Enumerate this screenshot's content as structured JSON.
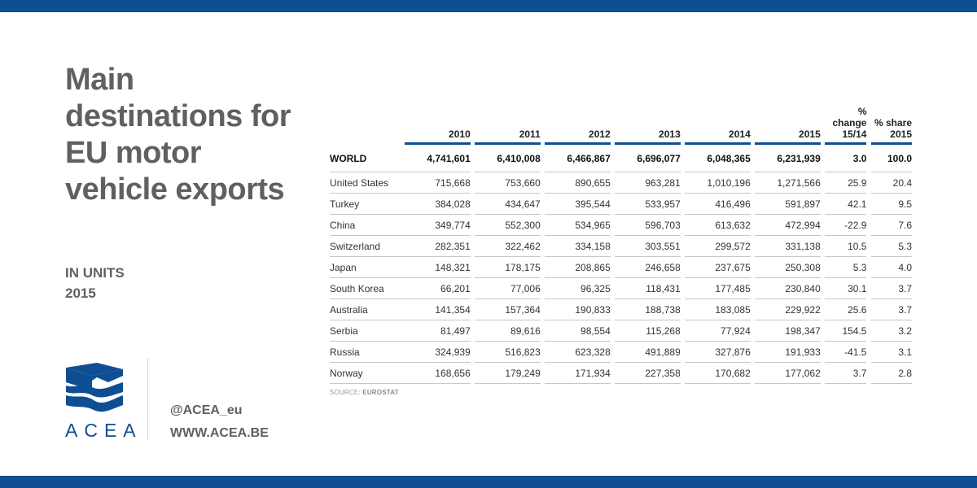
{
  "colors": {
    "brand": "#0f4e93",
    "title_gray": "#606062",
    "rule_gray": "#c7c7c7"
  },
  "title": "Main destinations for EU motor vehicle exports",
  "subtitle": {
    "line1": "IN UNITS",
    "line2": "2015"
  },
  "logo": {
    "icon": "acea-logo-icon",
    "text": "ACEA"
  },
  "social": {
    "handle": "@ACEA_eu",
    "website": "WWW.ACEA.BE"
  },
  "source": {
    "label": "SOURCE:",
    "name": "EUROSTAT"
  },
  "chart_data": {
    "type": "table",
    "columns": [
      "",
      "2010",
      "2011",
      "2012",
      "2013",
      "2014",
      "2015",
      "% change 15/14",
      "% share 2015"
    ],
    "column_lines": [
      [
        ""
      ],
      [
        "2010"
      ],
      [
        "2011"
      ],
      [
        "2012"
      ],
      [
        "2013"
      ],
      [
        "2014"
      ],
      [
        "2015"
      ],
      [
        "% change",
        "15/14"
      ],
      [
        "% share",
        "2015"
      ]
    ],
    "rows": [
      [
        "WORLD",
        "4,741,601",
        "6,410,008",
        "6,466,867",
        "6,696,077",
        "6,048,365",
        "6,231,939",
        "3.0",
        "100.0"
      ],
      [
        "United States",
        "715,668",
        "753,660",
        "890,655",
        "963,281",
        "1,010,196",
        "1,271,566",
        "25.9",
        "20.4"
      ],
      [
        "Turkey",
        "384,028",
        "434,647",
        "395,544",
        "533,957",
        "416,496",
        "591,897",
        "42.1",
        "9.5"
      ],
      [
        "China",
        "349,774",
        "552,300",
        "534,965",
        "596,703",
        "613,632",
        "472,994",
        "-22.9",
        "7.6"
      ],
      [
        "Switzerland",
        "282,351",
        "322,462",
        "334,158",
        "303,551",
        "299,572",
        "331,138",
        "10.5",
        "5.3"
      ],
      [
        "Japan",
        "148,321",
        "178,175",
        "208,865",
        "246,658",
        "237,675",
        "250,308",
        "5.3",
        "4.0"
      ],
      [
        "South Korea",
        "66,201",
        "77,006",
        "96,325",
        "118,431",
        "177,485",
        "230,840",
        "30.1",
        "3.7"
      ],
      [
        "Australia",
        "141,354",
        "157,364",
        "190,833",
        "188,738",
        "183,085",
        "229,922",
        "25.6",
        "3.7"
      ],
      [
        "Serbia",
        "81,497",
        "89,616",
        "98,554",
        "115,268",
        "77,924",
        "198,347",
        "154.5",
        "3.2"
      ],
      [
        "Russia",
        "324,939",
        "516,823",
        "623,328",
        "491,889",
        "327,876",
        "191,933",
        "-41.5",
        "3.1"
      ],
      [
        "Norway",
        "168,656",
        "179,249",
        "171,934",
        "227,358",
        "170,682",
        "177,062",
        "3.7",
        "2.8"
      ]
    ]
  }
}
